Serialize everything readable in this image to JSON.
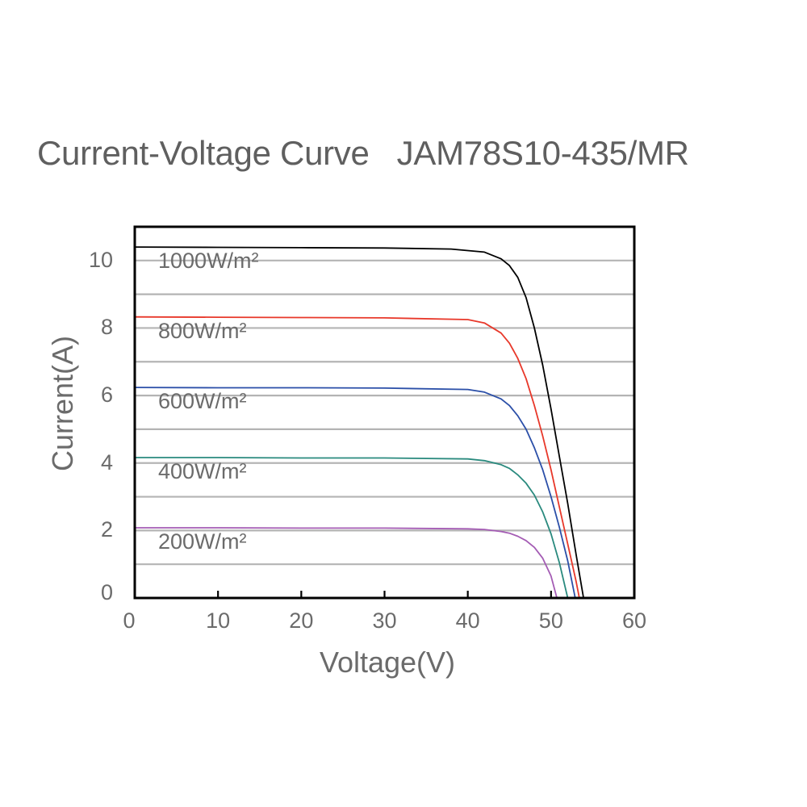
{
  "chart_data": {
    "type": "line",
    "title": "Current-Voltage Curve   JAM78S10-435/MR",
    "xlabel": "Voltage(V)",
    "ylabel": "Current(A)",
    "xlim": [
      0,
      60
    ],
    "ylim": [
      0,
      11
    ],
    "xticks": [
      "0",
      "10",
      "20",
      "30",
      "40",
      "50",
      "60"
    ],
    "yticks": [
      "0",
      "2",
      "4",
      "6",
      "8",
      "10"
    ],
    "grid": "horizontal, every 1 A",
    "legend_position": "inline labels near left of each curve",
    "series": [
      {
        "name": "1000W/m²",
        "color": "#000000",
        "isc": 10.4,
        "voc": 53.9,
        "points": [
          [
            0,
            10.4
          ],
          [
            10,
            10.39
          ],
          [
            20,
            10.38
          ],
          [
            30,
            10.37
          ],
          [
            38,
            10.34
          ],
          [
            42,
            10.25
          ],
          [
            44,
            10.05
          ],
          [
            45,
            9.85
          ],
          [
            46,
            9.5
          ],
          [
            47,
            8.9
          ],
          [
            48,
            8.0
          ],
          [
            49,
            6.9
          ],
          [
            50,
            5.6
          ],
          [
            51,
            4.2
          ],
          [
            52,
            2.8
          ],
          [
            53,
            1.3
          ],
          [
            53.9,
            0
          ]
        ]
      },
      {
        "name": "800W/m²",
        "color": "#e8382a",
        "isc": 8.33,
        "voc": 53.4,
        "points": [
          [
            0,
            8.33
          ],
          [
            10,
            8.32
          ],
          [
            20,
            8.31
          ],
          [
            30,
            8.3
          ],
          [
            40,
            8.25
          ],
          [
            42,
            8.15
          ],
          [
            44,
            7.85
          ],
          [
            45,
            7.55
          ],
          [
            46,
            7.1
          ],
          [
            47,
            6.5
          ],
          [
            48,
            5.7
          ],
          [
            49,
            4.8
          ],
          [
            50,
            3.8
          ],
          [
            51,
            2.7
          ],
          [
            52,
            1.6
          ],
          [
            53,
            0.5
          ],
          [
            53.4,
            0
          ]
        ]
      },
      {
        "name": "600W/m²",
        "color": "#2b4fa8",
        "isc": 6.24,
        "voc": 52.9,
        "points": [
          [
            0,
            6.24
          ],
          [
            10,
            6.23
          ],
          [
            20,
            6.23
          ],
          [
            30,
            6.22
          ],
          [
            40,
            6.18
          ],
          [
            42,
            6.1
          ],
          [
            44,
            5.9
          ],
          [
            45,
            5.7
          ],
          [
            46,
            5.4
          ],
          [
            47,
            5.0
          ],
          [
            48,
            4.45
          ],
          [
            49,
            3.8
          ],
          [
            50,
            3.0
          ],
          [
            51,
            2.1
          ],
          [
            52,
            1.1
          ],
          [
            52.9,
            0
          ]
        ]
      },
      {
        "name": "400W/m²",
        "color": "#2a8a7e",
        "isc": 4.16,
        "voc": 52.0,
        "points": [
          [
            0,
            4.16
          ],
          [
            10,
            4.16
          ],
          [
            20,
            4.15
          ],
          [
            30,
            4.15
          ],
          [
            40,
            4.12
          ],
          [
            42,
            4.07
          ],
          [
            44,
            3.95
          ],
          [
            45,
            3.84
          ],
          [
            46,
            3.65
          ],
          [
            47,
            3.4
          ],
          [
            48,
            3.05
          ],
          [
            49,
            2.55
          ],
          [
            50,
            1.9
          ],
          [
            51,
            1.05
          ],
          [
            52,
            0
          ]
        ]
      },
      {
        "name": "200W/m²",
        "color": "#a45cb4",
        "isc": 2.08,
        "voc": 50.7,
        "points": [
          [
            0,
            2.08
          ],
          [
            10,
            2.08
          ],
          [
            20,
            2.07
          ],
          [
            30,
            2.07
          ],
          [
            40,
            2.05
          ],
          [
            42,
            2.03
          ],
          [
            44,
            1.97
          ],
          [
            45,
            1.92
          ],
          [
            46,
            1.83
          ],
          [
            47,
            1.7
          ],
          [
            48,
            1.5
          ],
          [
            49,
            1.18
          ],
          [
            50,
            0.65
          ],
          [
            50.7,
            0
          ]
        ]
      }
    ]
  }
}
